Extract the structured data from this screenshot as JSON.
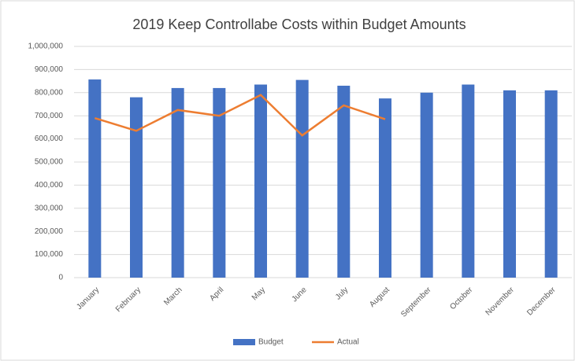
{
  "chart_data": {
    "type": "bar",
    "title": "2019 Keep Controllabe Costs within Budget Amounts",
    "categories": [
      "January",
      "February",
      "March",
      "April",
      "May",
      "June",
      "July",
      "August",
      "September",
      "October",
      "November",
      "December"
    ],
    "series": [
      {
        "name": "Budget",
        "type": "bar",
        "color": "#4472c4",
        "values": [
          857000,
          780000,
          820000,
          820000,
          835000,
          855000,
          830000,
          775000,
          800000,
          835000,
          810000,
          810000
        ]
      },
      {
        "name": "Actual",
        "type": "line",
        "color": "#ed7d31",
        "values": [
          690000,
          635000,
          725000,
          700000,
          790000,
          615000,
          745000,
          685000,
          null,
          null,
          null,
          null
        ]
      }
    ],
    "ylim": [
      0,
      1000000
    ],
    "yticks": [
      0,
      {
        "value": 100000,
        "label": "100,000"
      },
      {
        "value": 200000,
        "label": "200,000"
      },
      {
        "value": 300000,
        "label": "300,000"
      },
      {
        "value": 400000,
        "label": "400,000"
      },
      {
        "value": 500000,
        "label": "500,000"
      },
      {
        "value": 600000,
        "label": "600,000"
      },
      {
        "value": 700000,
        "label": "700,000"
      },
      {
        "value": 800000,
        "label": "800,000"
      },
      {
        "value": 900000,
        "label": "900,000"
      },
      {
        "value": 1000000,
        "label": "1,000,000"
      }
    ],
    "grid": true,
    "legend": "bottom"
  }
}
